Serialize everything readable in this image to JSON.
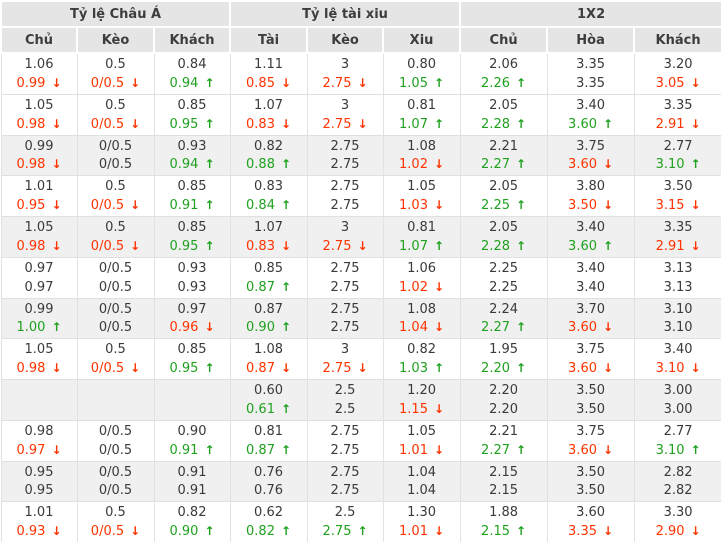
{
  "colors": {
    "up": "#1fa11f",
    "down": "#ff3300",
    "header_bg": "#e5e5e5",
    "shaded_row_bg": "#f0f0f0"
  },
  "icons": {
    "up_arrow": "↑",
    "down_arrow": "↓"
  },
  "table": {
    "groups": [
      {
        "label": "Tỷ lệ Châu Á",
        "columns": [
          "Chủ",
          "Kèo",
          "Khách"
        ]
      },
      {
        "label": "Tỷ lệ tài xiu",
        "columns": [
          "Tài",
          "Kèo",
          "Xiu"
        ]
      },
      {
        "label": "1X2",
        "columns": [
          "Chủ",
          "Hòa",
          "Khách"
        ]
      }
    ],
    "rows": [
      {
        "shaded": false,
        "cells": [
          [
            "1.06",
            "0.99",
            "down"
          ],
          [
            "0.5",
            "0/0.5",
            "down"
          ],
          [
            "0.84",
            "0.94",
            "up"
          ],
          [
            "1.11",
            "0.85",
            "down"
          ],
          [
            "3",
            "2.75",
            "down"
          ],
          [
            "0.80",
            "1.05",
            "up"
          ],
          [
            "2.06",
            "2.26",
            "up"
          ],
          [
            "3.35",
            "3.35",
            ""
          ],
          [
            "3.20",
            "3.05",
            "down"
          ]
        ]
      },
      {
        "shaded": false,
        "cells": [
          [
            "1.05",
            "0.98",
            "down"
          ],
          [
            "0.5",
            "0/0.5",
            "down"
          ],
          [
            "0.85",
            "0.95",
            "up"
          ],
          [
            "1.07",
            "0.83",
            "down"
          ],
          [
            "3",
            "2.75",
            "down"
          ],
          [
            "0.81",
            "1.07",
            "up"
          ],
          [
            "2.05",
            "2.28",
            "up"
          ],
          [
            "3.40",
            "3.60",
            "up"
          ],
          [
            "3.35",
            "2.91",
            "down"
          ]
        ]
      },
      {
        "shaded": true,
        "cells": [
          [
            "0.99",
            "0.98",
            "down"
          ],
          [
            "0/0.5",
            "0/0.5",
            ""
          ],
          [
            "0.93",
            "0.94",
            "up"
          ],
          [
            "0.82",
            "0.88",
            "up"
          ],
          [
            "2.75",
            "2.75",
            ""
          ],
          [
            "1.08",
            "1.02",
            "down"
          ],
          [
            "2.21",
            "2.27",
            "up"
          ],
          [
            "3.75",
            "3.60",
            "down"
          ],
          [
            "2.77",
            "3.10",
            "up"
          ]
        ]
      },
      {
        "shaded": false,
        "cells": [
          [
            "1.01",
            "0.95",
            "down"
          ],
          [
            "0.5",
            "0/0.5",
            "down"
          ],
          [
            "0.85",
            "0.91",
            "up"
          ],
          [
            "0.83",
            "0.84",
            "up"
          ],
          [
            "2.75",
            "2.75",
            ""
          ],
          [
            "1.05",
            "1.03",
            "down"
          ],
          [
            "2.05",
            "2.25",
            "up"
          ],
          [
            "3.80",
            "3.50",
            "down"
          ],
          [
            "3.50",
            "3.15",
            "down"
          ]
        ]
      },
      {
        "shaded": true,
        "cells": [
          [
            "1.05",
            "0.98",
            "down"
          ],
          [
            "0.5",
            "0/0.5",
            "down"
          ],
          [
            "0.85",
            "0.95",
            "up"
          ],
          [
            "1.07",
            "0.83",
            "down"
          ],
          [
            "3",
            "2.75",
            "down"
          ],
          [
            "0.81",
            "1.07",
            "up"
          ],
          [
            "2.05",
            "2.28",
            "up"
          ],
          [
            "3.40",
            "3.60",
            "up"
          ],
          [
            "3.35",
            "2.91",
            "down"
          ]
        ]
      },
      {
        "shaded": false,
        "cells": [
          [
            "0.97",
            "0.97",
            ""
          ],
          [
            "0/0.5",
            "0/0.5",
            ""
          ],
          [
            "0.93",
            "0.93",
            ""
          ],
          [
            "0.85",
            "0.87",
            "up"
          ],
          [
            "2.75",
            "2.75",
            ""
          ],
          [
            "1.06",
            "1.02",
            "down"
          ],
          [
            "2.25",
            "2.25",
            ""
          ],
          [
            "3.40",
            "3.40",
            ""
          ],
          [
            "3.13",
            "3.13",
            ""
          ]
        ]
      },
      {
        "shaded": true,
        "cells": [
          [
            "0.99",
            "1.00",
            "up"
          ],
          [
            "0/0.5",
            "0/0.5",
            ""
          ],
          [
            "0.97",
            "0.96",
            "down"
          ],
          [
            "0.87",
            "0.90",
            "up"
          ],
          [
            "2.75",
            "2.75",
            ""
          ],
          [
            "1.08",
            "1.04",
            "down"
          ],
          [
            "2.24",
            "2.27",
            "up"
          ],
          [
            "3.70",
            "3.60",
            "down"
          ],
          [
            "3.10",
            "3.10",
            ""
          ]
        ]
      },
      {
        "shaded": false,
        "cells": [
          [
            "1.05",
            "0.98",
            "down"
          ],
          [
            "0.5",
            "0/0.5",
            "down"
          ],
          [
            "0.85",
            "0.95",
            "up"
          ],
          [
            "1.08",
            "0.87",
            "down"
          ],
          [
            "3",
            "2.75",
            "down"
          ],
          [
            "0.82",
            "1.03",
            "up"
          ],
          [
            "1.95",
            "2.20",
            "up"
          ],
          [
            "3.75",
            "3.60",
            "down"
          ],
          [
            "3.40",
            "3.10",
            "down"
          ]
        ]
      },
      {
        "shaded": true,
        "cells": [
          [
            "",
            "",
            ""
          ],
          [
            "",
            "",
            ""
          ],
          [
            "",
            "",
            ""
          ],
          [
            "0.60",
            "0.61",
            "up"
          ],
          [
            "2.5",
            "2.5",
            ""
          ],
          [
            "1.20",
            "1.15",
            "down"
          ],
          [
            "2.20",
            "2.20",
            ""
          ],
          [
            "3.50",
            "3.50",
            ""
          ],
          [
            "3.00",
            "3.00",
            ""
          ]
        ]
      },
      {
        "shaded": false,
        "cells": [
          [
            "0.98",
            "0.97",
            "down"
          ],
          [
            "0/0.5",
            "0/0.5",
            ""
          ],
          [
            "0.90",
            "0.91",
            "up"
          ],
          [
            "0.81",
            "0.87",
            "up"
          ],
          [
            "2.75",
            "2.75",
            ""
          ],
          [
            "1.05",
            "1.01",
            "down"
          ],
          [
            "2.21",
            "2.27",
            "up"
          ],
          [
            "3.75",
            "3.60",
            "down"
          ],
          [
            "2.77",
            "3.10",
            "up"
          ]
        ]
      },
      {
        "shaded": true,
        "cells": [
          [
            "0.95",
            "0.95",
            ""
          ],
          [
            "0/0.5",
            "0/0.5",
            ""
          ],
          [
            "0.91",
            "0.91",
            ""
          ],
          [
            "0.76",
            "0.76",
            ""
          ],
          [
            "2.75",
            "2.75",
            ""
          ],
          [
            "1.04",
            "1.04",
            ""
          ],
          [
            "2.15",
            "2.15",
            ""
          ],
          [
            "3.50",
            "3.50",
            ""
          ],
          [
            "2.82",
            "2.82",
            ""
          ]
        ]
      },
      {
        "shaded": false,
        "cells": [
          [
            "1.01",
            "0.93",
            "down"
          ],
          [
            "0.5",
            "0/0.5",
            "down"
          ],
          [
            "0.82",
            "0.90",
            "up"
          ],
          [
            "0.62",
            "0.82",
            "up"
          ],
          [
            "2.5",
            "2.75",
            "up"
          ],
          [
            "1.30",
            "1.01",
            "down"
          ],
          [
            "1.88",
            "2.15",
            "up"
          ],
          [
            "3.60",
            "3.35",
            "down"
          ],
          [
            "3.30",
            "2.90",
            "down"
          ]
        ]
      }
    ]
  }
}
